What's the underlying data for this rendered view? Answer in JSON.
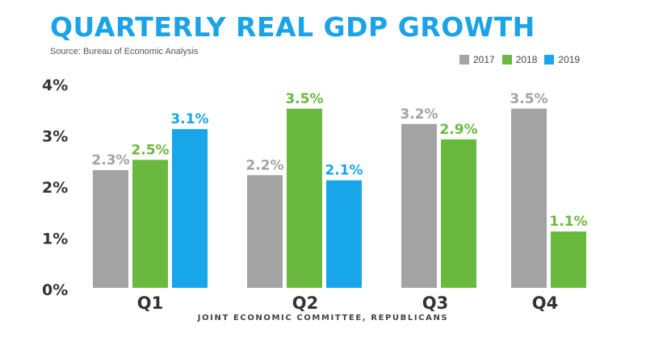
{
  "header": {
    "title": "QUARTERLY REAL GDP GROWTH",
    "source": "Source: Bureau of Economic Analysis"
  },
  "footer": {
    "text": "JOINT ECONOMIC COMMITTEE, REPUBLICANS"
  },
  "chart_data": {
    "type": "bar",
    "title": "QUARTERLY REAL GDP GROWTH",
    "subtitle": "Source: Bureau of Economic Analysis",
    "categories": [
      "Q1",
      "Q2",
      "Q3",
      "Q4"
    ],
    "series": [
      {
        "name": "2017",
        "color": "#a3a3a3",
        "values": [
          2.3,
          2.2,
          3.2,
          3.5
        ],
        "labels": [
          "2.3%",
          "2.2%",
          "3.2%",
          "3.5%"
        ]
      },
      {
        "name": "2018",
        "color": "#6ab93f",
        "values": [
          2.5,
          3.5,
          2.9,
          1.1
        ],
        "labels": [
          "2.5%",
          "3.5%",
          "2.9%",
          "1.1%"
        ]
      },
      {
        "name": "2019",
        "color": "#17a6ea",
        "values": [
          3.1,
          2.1,
          null,
          null
        ],
        "labels": [
          "3.1%",
          "2.1%",
          "",
          ""
        ]
      }
    ],
    "y_ticks": [
      "0%",
      "1%",
      "2%",
      "3%",
      "4%"
    ],
    "ylim": [
      0,
      4
    ],
    "legend_position": "top-right",
    "grid": false
  }
}
